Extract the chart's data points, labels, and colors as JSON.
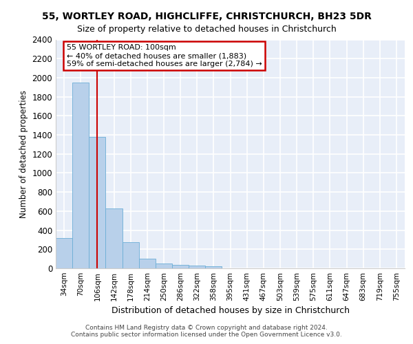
{
  "title_line1": "55, WORTLEY ROAD, HIGHCLIFFE, CHRISTCHURCH, BH23 5DR",
  "title_line2": "Size of property relative to detached houses in Christchurch",
  "xlabel": "Distribution of detached houses by size in Christchurch",
  "ylabel": "Number of detached properties",
  "footer_line1": "Contains HM Land Registry data © Crown copyright and database right 2024.",
  "footer_line2": "Contains public sector information licensed under the Open Government Licence v3.0.",
  "bar_labels": [
    "34sqm",
    "70sqm",
    "106sqm",
    "142sqm",
    "178sqm",
    "214sqm",
    "250sqm",
    "286sqm",
    "322sqm",
    "358sqm",
    "395sqm",
    "431sqm",
    "467sqm",
    "503sqm",
    "539sqm",
    "575sqm",
    "611sqm",
    "647sqm",
    "683sqm",
    "719sqm",
    "755sqm"
  ],
  "bar_values": [
    320,
    1950,
    1380,
    630,
    275,
    100,
    50,
    35,
    28,
    20,
    0,
    0,
    0,
    0,
    0,
    0,
    0,
    0,
    0,
    0,
    0
  ],
  "bar_color": "#b8d0ea",
  "bar_edge_color": "#6baed6",
  "background_color": "#e8eef8",
  "grid_color": "#ffffff",
  "annotation_line1": "55 WORTLEY ROAD: 100sqm",
  "annotation_line2": "← 40% of detached houses are smaller (1,883)",
  "annotation_line3": "59% of semi-detached houses are larger (2,784) →",
  "annotation_box_color": "#ffffff",
  "annotation_box_edge": "#cc0000",
  "vline_color": "#cc0000",
  "vline_x": 2.0,
  "ylim": [
    0,
    2400
  ],
  "yticks": [
    0,
    200,
    400,
    600,
    800,
    1000,
    1200,
    1400,
    1600,
    1800,
    2000,
    2200,
    2400
  ]
}
